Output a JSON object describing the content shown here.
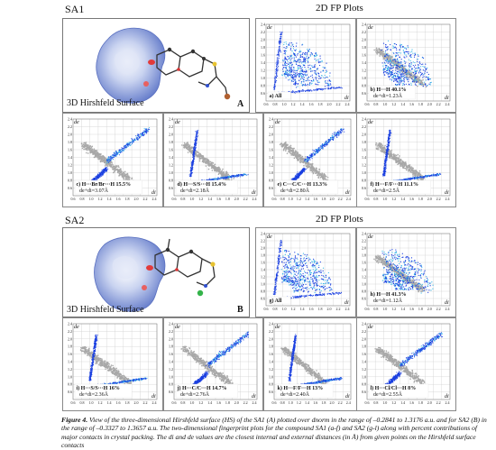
{
  "sections": [
    {
      "id": "SA1",
      "label": "SA1",
      "fp_title": "2D FP Plots",
      "hs_caption": "3D Hirshfeld Surface",
      "hs_letter": "A",
      "plots": [
        {
          "tag": "a) All",
          "line1": "",
          "line2": "",
          "style": "all"
        },
        {
          "tag": "b)",
          "line1": "H···H  40.1%",
          "line2": "de+di=1.23Å",
          "style": "hh"
        },
        {
          "tag": "c)",
          "line1": "H···Br/Br···H  15.5%",
          "line2": "de+di=3.07Å",
          "style": "wing"
        },
        {
          "tag": "d)",
          "line1": "H···S/S···H  15.4%",
          "line2": "de+di=2.18Å",
          "style": "spike"
        },
        {
          "tag": "e)",
          "line1": "C···C/C···H  13.3%",
          "line2": "de+di=2.80Å",
          "style": "wing"
        },
        {
          "tag": "f)",
          "line1": "H···F/F···H  11.1%",
          "line2": "de+di=2.5Å",
          "style": "spike"
        }
      ]
    },
    {
      "id": "SA2",
      "label": "SA2",
      "fp_title": "2D FP Plots",
      "hs_caption": "3D Hirshfeld Surface",
      "hs_letter": "B",
      "plots": [
        {
          "tag": "g) All",
          "line1": "",
          "line2": "",
          "style": "all"
        },
        {
          "tag": "h)",
          "line1": "H···H  41.3%",
          "line2": "de+di=1.12Å",
          "style": "hh"
        },
        {
          "tag": "i)",
          "line1": "H···S/S···H  16%",
          "line2": "de+di=2.36Å",
          "style": "spike"
        },
        {
          "tag": "j)",
          "line1": "H···C/C···H  14.7%",
          "line2": "de+di=2.76Å",
          "style": "wing"
        },
        {
          "tag": "k)",
          "line1": "H···F/F···H  13%",
          "line2": "de+di=2.40Å",
          "style": "spike"
        },
        {
          "tag": "l)",
          "line1": "H···Cl/Cl···H  8%",
          "line2": "de+di=2.55Å",
          "style": "wing"
        }
      ]
    }
  ],
  "axis": {
    "de_label": "de",
    "di_label": "di",
    "y_ticks": [
      "2.4",
      "2.2",
      "2.0",
      "1.8",
      "1.6",
      "1.4",
      "1.2",
      "1.0",
      "0.8",
      "0.6"
    ],
    "x_ticks": [
      "0.6",
      "0.8",
      "1.0",
      "1.2",
      "1.4",
      "1.6",
      "1.8",
      "2.0",
      "2.2",
      "2.4"
    ]
  },
  "caption": {
    "label": "Figure 4.",
    "text": "View of the three-dimensional Hirshfeld surface (HS) of the SA1 (A) plotted over dnorm in the range of –0.2841 to 1.3176 a.u. and for SA2 (B) in the range of –0.3327 to 1.3657 a.u. The two-dimensional fingerprint plots for the compound SA1 (a-f) and SA2 (g-l) along with percent contributions of major contacts in crystal packing. The di and de values are the closest internal and external distances (in Å) from given points on the Hirshfeld surface contacts"
  },
  "colors": {
    "fp_blue": "#1a3fe0",
    "fp_cyan": "#36b7e8",
    "fp_grey": "#a8a8a8",
    "surface": "#8ea3da"
  }
}
